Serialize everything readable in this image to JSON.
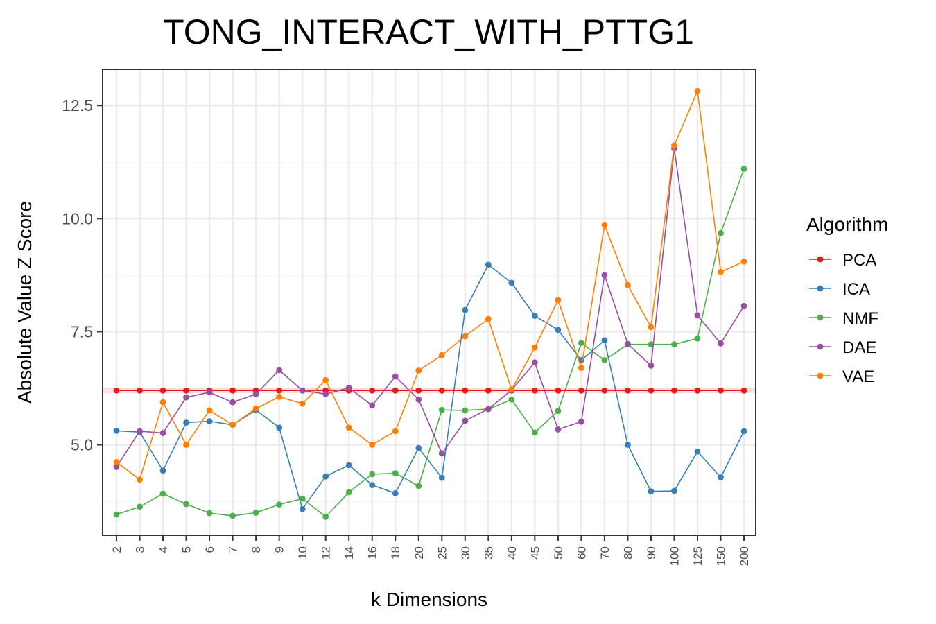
{
  "chart_data": {
    "type": "line",
    "title": "TONG_INTERACT_WITH_PTTG1",
    "xlabel": "k Dimensions",
    "ylabel": "Absolute Value Z Score",
    "ylim": [
      3.0,
      13.3
    ],
    "yticks": [
      5.0,
      7.5,
      10.0,
      12.5
    ],
    "ytick_labels": [
      "5.0",
      "7.5",
      "10.0",
      "12.5"
    ],
    "grid": true,
    "legend": {
      "title": "Algorithm",
      "position": "right"
    },
    "categories": [
      "2",
      "3",
      "4",
      "5",
      "6",
      "7",
      "8",
      "9",
      "10",
      "12",
      "14",
      "16",
      "18",
      "20",
      "25",
      "30",
      "35",
      "40",
      "45",
      "50",
      "60",
      "70",
      "80",
      "90",
      "100",
      "125",
      "150",
      "200"
    ],
    "series": [
      {
        "name": "PCA",
        "color": "#e41a1c",
        "values": [
          6.2,
          6.2,
          6.2,
          6.2,
          6.2,
          6.2,
          6.2,
          6.2,
          6.2,
          6.2,
          6.2,
          6.2,
          6.2,
          6.2,
          6.2,
          6.2,
          6.2,
          6.2,
          6.2,
          6.2,
          6.2,
          6.2,
          6.2,
          6.2,
          6.2,
          6.2,
          6.2,
          6.2
        ]
      },
      {
        "name": "ICA",
        "color": "#377eb8",
        "values": [
          5.31,
          5.28,
          4.43,
          5.49,
          5.52,
          5.44,
          5.77,
          5.38,
          3.58,
          4.3,
          4.55,
          4.11,
          3.93,
          4.93,
          4.27,
          7.98,
          8.98,
          8.58,
          7.85,
          7.54,
          6.87,
          7.31,
          5.0,
          3.97,
          3.98,
          4.85,
          4.28,
          5.3
        ]
      },
      {
        "name": "NMF",
        "color": "#4daf4a",
        "values": [
          3.46,
          3.63,
          3.92,
          3.69,
          3.49,
          3.43,
          3.5,
          3.68,
          3.81,
          3.41,
          3.95,
          4.35,
          4.37,
          4.09,
          5.77,
          5.76,
          5.79,
          6.0,
          5.27,
          5.75,
          7.25,
          6.87,
          7.22,
          7.22,
          7.22,
          7.35,
          9.68,
          11.1
        ]
      },
      {
        "name": "DAE",
        "color": "#984ea3",
        "values": [
          4.51,
          5.3,
          5.26,
          6.05,
          6.16,
          5.94,
          6.12,
          6.65,
          6.2,
          6.12,
          6.26,
          5.87,
          6.51,
          6.0,
          4.81,
          5.53,
          5.79,
          6.21,
          6.82,
          5.34,
          5.51,
          8.75,
          7.23,
          6.75,
          11.55,
          7.86,
          7.24,
          8.07
        ]
      },
      {
        "name": "VAE",
        "color": "#ff7f00",
        "values": [
          4.62,
          4.23,
          5.94,
          5.0,
          5.76,
          5.44,
          5.8,
          6.06,
          5.91,
          6.43,
          5.38,
          5.0,
          5.3,
          6.64,
          6.98,
          7.4,
          7.78,
          6.22,
          7.15,
          8.2,
          6.7,
          9.86,
          8.53,
          7.6,
          11.62,
          12.82,
          8.82,
          9.05
        ]
      }
    ]
  }
}
